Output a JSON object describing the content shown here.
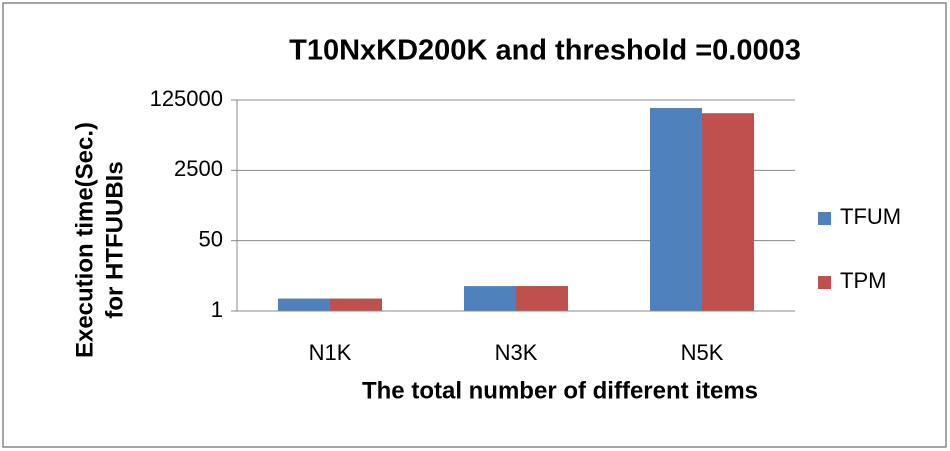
{
  "chart_data": {
    "type": "bar",
    "title": "T10NxKD200K and threshold =0.0003",
    "xlabel": "The total number of different items",
    "ylabel": [
      "Execution time(Sec.)",
      "for HTFUUBIs"
    ],
    "categories": [
      "N1K",
      "N3K",
      "N5K"
    ],
    "series": [
      {
        "name": "TFUM",
        "color": "#4f81bd",
        "values": [
          2,
          4,
          80000
        ]
      },
      {
        "name": "TPM",
        "color": "#c0504d",
        "values": [
          2,
          4,
          60000
        ]
      }
    ],
    "ylim": [
      1,
      125000
    ],
    "yticks": [
      1,
      50,
      2500,
      125000
    ],
    "log_scale": true,
    "log_base": 50,
    "grid": true,
    "legend": "right"
  }
}
